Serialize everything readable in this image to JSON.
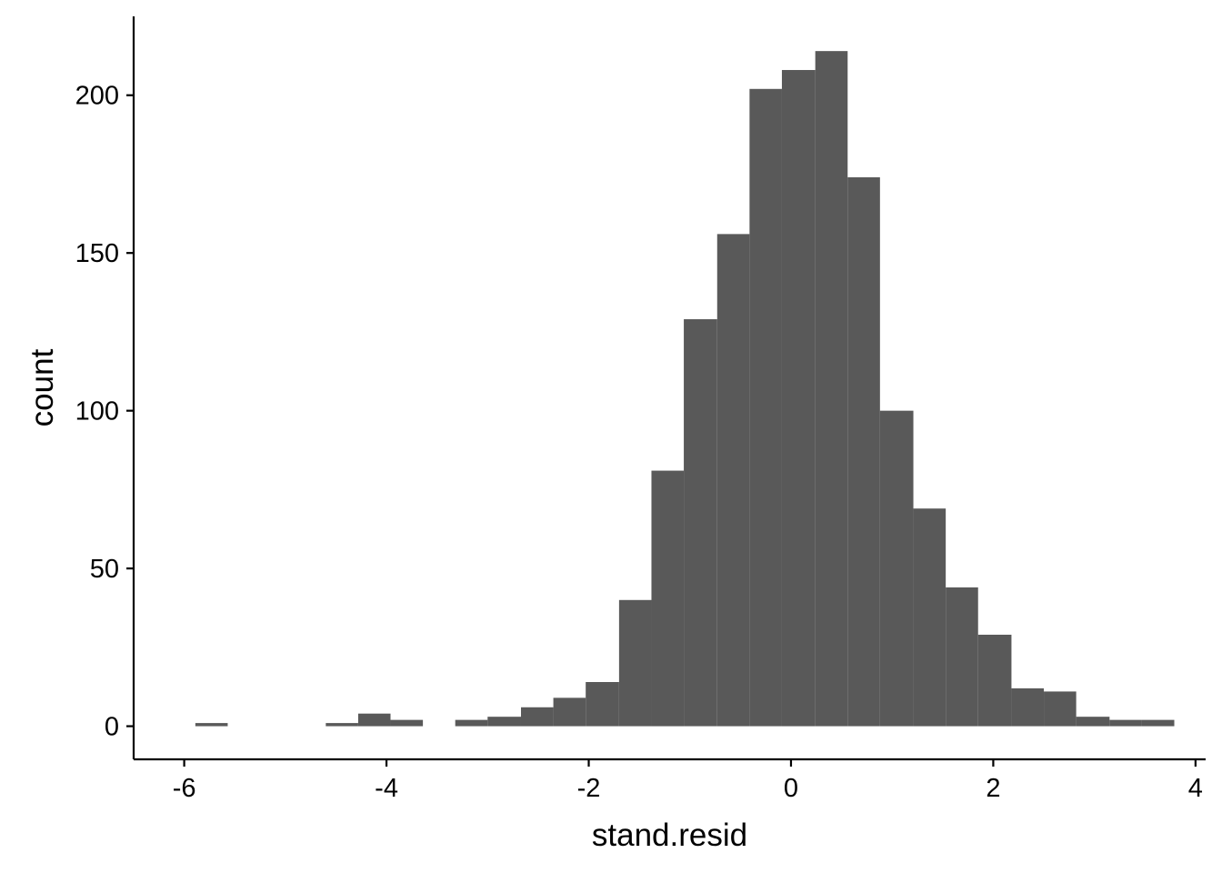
{
  "chart_data": {
    "type": "bar",
    "subtype": "histogram",
    "title": "",
    "xlabel": "stand.resid",
    "ylabel": "count",
    "xlim": [
      -6.5,
      4.1
    ],
    "ylim": [
      -10.5,
      225
    ],
    "grid": false,
    "legend": "none",
    "bar_color": "#595959",
    "x_ticks": [
      {
        "value": -6,
        "label": "-6"
      },
      {
        "value": -4,
        "label": "-4"
      },
      {
        "value": -2,
        "label": "-2"
      },
      {
        "value": 0,
        "label": "0"
      },
      {
        "value": 2,
        "label": "2"
      },
      {
        "value": 4,
        "label": "4"
      }
    ],
    "y_ticks": [
      {
        "value": 0,
        "label": "0"
      },
      {
        "value": 50,
        "label": "50"
      },
      {
        "value": 100,
        "label": "100"
      },
      {
        "value": 150,
        "label": "150"
      },
      {
        "value": 200,
        "label": "200"
      }
    ],
    "bins": [
      {
        "x0": -5.89,
        "x1": -5.57,
        "count": 1
      },
      {
        "x0": -4.6,
        "x1": -4.28,
        "count": 1
      },
      {
        "x0": -4.28,
        "x1": -3.96,
        "count": 4
      },
      {
        "x0": -3.96,
        "x1": -3.64,
        "count": 2
      },
      {
        "x0": -3.32,
        "x1": -3.0,
        "count": 2
      },
      {
        "x0": -3.0,
        "x1": -2.67,
        "count": 3
      },
      {
        "x0": -2.67,
        "x1": -2.35,
        "count": 6
      },
      {
        "x0": -2.35,
        "x1": -2.03,
        "count": 9
      },
      {
        "x0": -2.03,
        "x1": -1.7,
        "count": 14
      },
      {
        "x0": -1.7,
        "x1": -1.38,
        "count": 40
      },
      {
        "x0": -1.38,
        "x1": -1.06,
        "count": 81
      },
      {
        "x0": -1.06,
        "x1": -0.73,
        "count": 129
      },
      {
        "x0": -0.73,
        "x1": -0.41,
        "count": 156
      },
      {
        "x0": -0.41,
        "x1": -0.09,
        "count": 202
      },
      {
        "x0": -0.09,
        "x1": 0.24,
        "count": 208
      },
      {
        "x0": 0.24,
        "x1": 0.56,
        "count": 214
      },
      {
        "x0": 0.56,
        "x1": 0.88,
        "count": 174
      },
      {
        "x0": 0.88,
        "x1": 1.21,
        "count": 100
      },
      {
        "x0": 1.21,
        "x1": 1.53,
        "count": 69
      },
      {
        "x0": 1.53,
        "x1": 1.85,
        "count": 44
      },
      {
        "x0": 1.85,
        "x1": 2.18,
        "count": 29
      },
      {
        "x0": 2.18,
        "x1": 2.5,
        "count": 12
      },
      {
        "x0": 2.5,
        "x1": 2.82,
        "count": 11
      },
      {
        "x0": 2.82,
        "x1": 3.15,
        "count": 3
      },
      {
        "x0": 3.15,
        "x1": 3.47,
        "count": 2
      },
      {
        "x0": 3.47,
        "x1": 3.79,
        "count": 2
      }
    ]
  }
}
